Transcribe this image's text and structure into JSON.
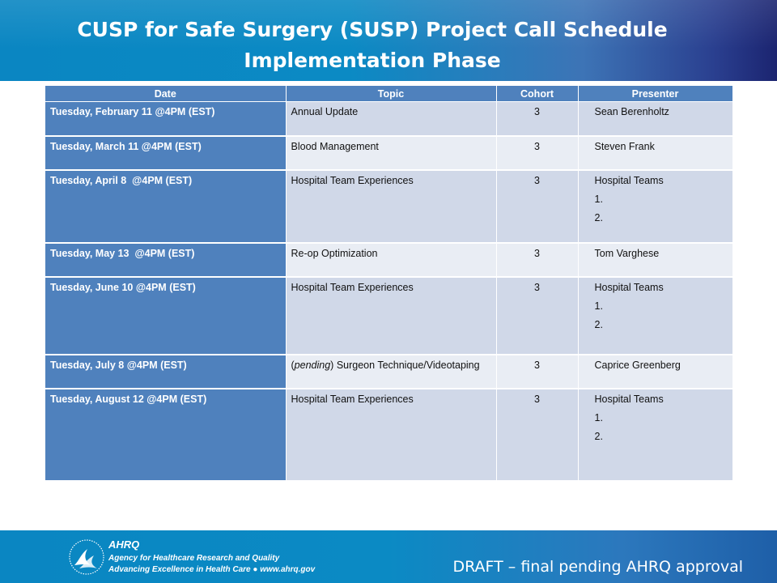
{
  "title": {
    "line1": "CUSP for Safe Surgery (SUSP) Project Call Schedule",
    "line2": "Implementation Phase"
  },
  "table": {
    "headers": [
      "Date",
      "Topic",
      "Cohort",
      "Presenter"
    ],
    "rows": [
      {
        "date": "Tuesday, February 11 @4PM (EST)",
        "topic_prefix": "",
        "topic": "Annual Update",
        "cohort": "3",
        "presenter": "Sean Berenholtz",
        "subitems": []
      },
      {
        "date": "Tuesday, March 11 @4PM (EST)",
        "topic_prefix": "",
        "topic": "Blood Management",
        "cohort": "3",
        "presenter": "Steven Frank",
        "subitems": []
      },
      {
        "date": "Tuesday, April 8  @4PM (EST)",
        "topic_prefix": "",
        "topic": "Hospital Team Experiences",
        "cohort": "3",
        "presenter": "Hospital Teams",
        "subitems": [
          "1.",
          "2."
        ]
      },
      {
        "date": "Tuesday, May 13  @4PM (EST)",
        "topic_prefix": "",
        "topic": "Re-op Optimization",
        "cohort": "3",
        "presenter": "Tom Varghese",
        "subitems": []
      },
      {
        "date": "Tuesday, June 10 @4PM (EST)",
        "topic_prefix": "",
        "topic": "Hospital Team Experiences",
        "cohort": "3",
        "presenter": "Hospital Teams",
        "subitems": [
          "1.",
          "2."
        ]
      },
      {
        "date": "Tuesday, July 8 @4PM (EST)",
        "topic_prefix": "pending",
        "topic": " Surgeon Technique/Videotaping",
        "cohort": "3",
        "presenter": "Caprice Greenberg",
        "subitems": []
      },
      {
        "date": "Tuesday, August 12 @4PM (EST)",
        "topic_prefix": "",
        "topic": "Hospital Team Experiences",
        "cohort": "3",
        "presenter": "Hospital Teams",
        "subitems": [
          "1.",
          "2."
        ]
      }
    ]
  },
  "footer": {
    "ahrq_mark": "AHRQ",
    "agency_line": "Agency for Healthcare Research and Quality",
    "tagline": "Advancing Excellence in Health Care ● www.ahrq.gov",
    "draft_note": "DRAFT – final pending AHRQ approval",
    "logo_icon": "hhs-eagle-icon"
  },
  "colors": {
    "header_blue": "#0b8ac4",
    "header_dark": "#1b2470",
    "table_header": "#4f81bd",
    "row_odd": "#d0d8e8",
    "row_even": "#e9edf4"
  }
}
